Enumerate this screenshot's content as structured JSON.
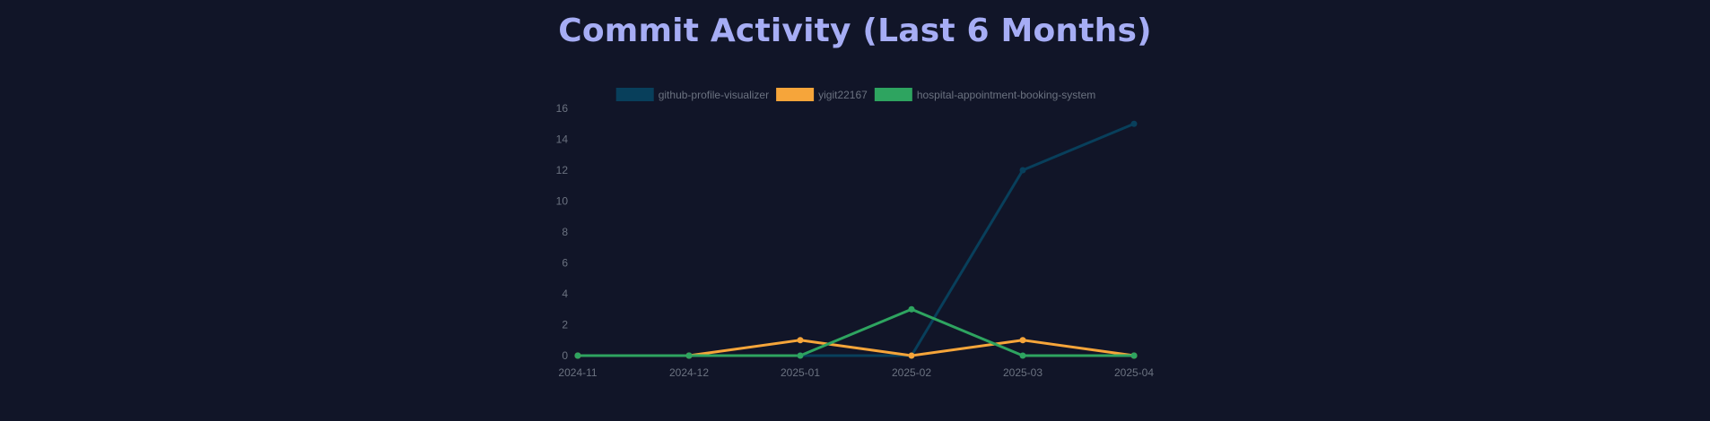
{
  "colors": {
    "background": "#111528",
    "title": "#a6adf5",
    "text": "#6b7280"
  },
  "chart_data": {
    "type": "line",
    "title": "Commit Activity (Last 6 Months)",
    "xlabel": "",
    "ylabel": "",
    "x": [
      "2024-11",
      "2024-12",
      "2025-01",
      "2025-02",
      "2025-03",
      "2025-04"
    ],
    "ylim": [
      0,
      16
    ],
    "yticks": [
      0,
      2,
      4,
      6,
      8,
      10,
      12,
      14,
      16
    ],
    "grid": false,
    "legend_position": "top-center",
    "series": [
      {
        "name": "github-profile-visualizer",
        "color": "#083f5b",
        "values": [
          0,
          0,
          0,
          0,
          12,
          15
        ]
      },
      {
        "name": "yigit22167",
        "color": "#f6a53a",
        "values": [
          0,
          0,
          1,
          0,
          1,
          0
        ]
      },
      {
        "name": "hospital-appointment-booking-system",
        "color": "#2ea460",
        "values": [
          0,
          0,
          0,
          3,
          0,
          0
        ]
      }
    ]
  }
}
